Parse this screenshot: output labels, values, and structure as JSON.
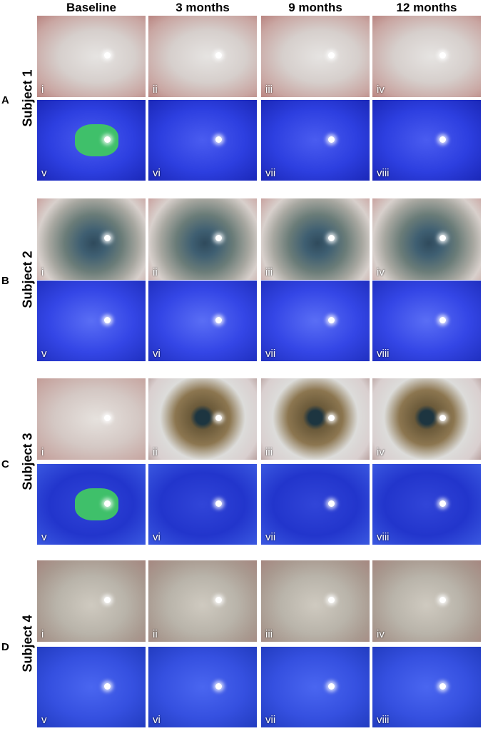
{
  "column_headers": [
    "Baseline",
    "3 months",
    "9 months",
    "12 months"
  ],
  "subjects": [
    {
      "letter": "A",
      "label": "Subject 1",
      "panels": [
        "i",
        "ii",
        "iii",
        "iv",
        "v",
        "vi",
        "vii",
        "viii"
      ]
    },
    {
      "letter": "B",
      "label": "Subject 2",
      "panels": [
        "i",
        "ii",
        "iii",
        "iv",
        "v",
        "vi",
        "vii",
        "viii"
      ]
    },
    {
      "letter": "C",
      "label": "Subject 3",
      "panels": [
        "i",
        "ii",
        "iii",
        "iv",
        "v",
        "vi",
        "vii",
        "viii"
      ]
    },
    {
      "letter": "D",
      "label": "Subject 4",
      "panels": [
        "i",
        "ii",
        "iii",
        "iv",
        "v",
        "vi",
        "vii",
        "viii"
      ]
    }
  ]
}
